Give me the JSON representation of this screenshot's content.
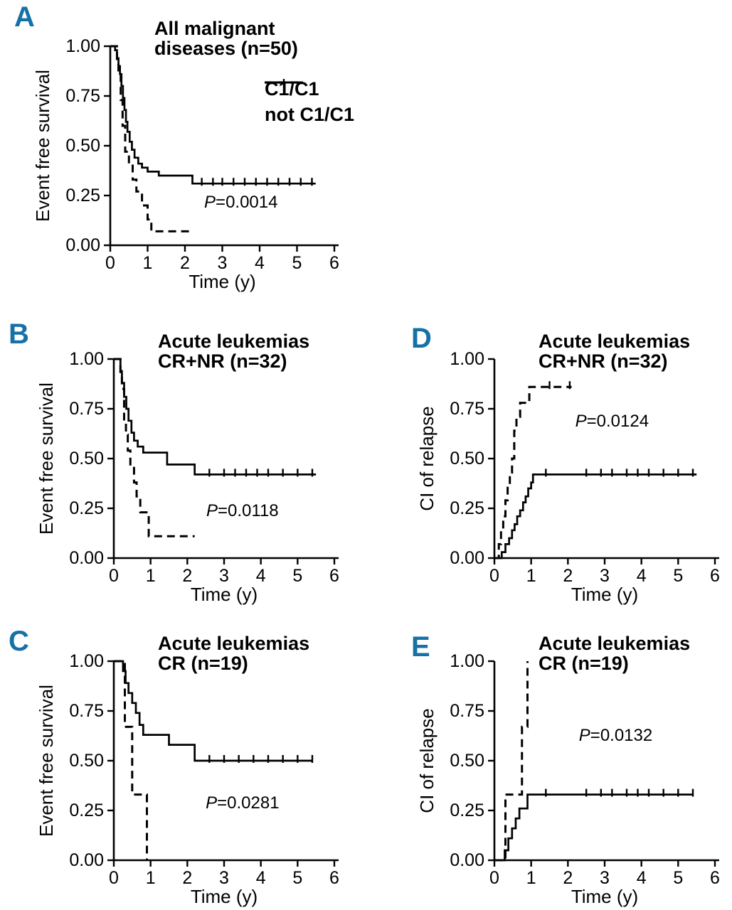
{
  "figure": {
    "background": "#ffffff",
    "panel_letter_color": "#1571a6",
    "curve_color": "#000000"
  },
  "legend": {
    "dashed_label": "C1/C1",
    "solid_label": "not C1/C1"
  },
  "chart_data": [
    {
      "panel_label": "A",
      "type": "line",
      "subtype": "kaplan-meier-step",
      "title_lines": [
        "All malignant",
        "diseases (n=50)"
      ],
      "xlabel": "Time (y)",
      "ylabel": "Event free survival",
      "xlim": [
        0,
        6
      ],
      "ylim": [
        0,
        1
      ],
      "xticks": [
        0,
        1,
        2,
        3,
        4,
        5,
        6
      ],
      "yticks": [
        "0.00",
        "0.25",
        "0.50",
        "0.75",
        "1.00"
      ],
      "p_label": "P=0.0014",
      "p_pos": [
        3.5,
        0.19
      ],
      "grid": false,
      "legend_position": "upper-right",
      "series": [
        {
          "name": "not C1/C1",
          "style": "solid",
          "points": [
            [
              0,
              1.0
            ],
            [
              0.13,
              0.98
            ],
            [
              0.18,
              0.94
            ],
            [
              0.22,
              0.9
            ],
            [
              0.26,
              0.86
            ],
            [
              0.3,
              0.8
            ],
            [
              0.34,
              0.74
            ],
            [
              0.38,
              0.68
            ],
            [
              0.42,
              0.62
            ],
            [
              0.46,
              0.57
            ],
            [
              0.52,
              0.52
            ],
            [
              0.58,
              0.48
            ],
            [
              0.65,
              0.44
            ],
            [
              0.75,
              0.41
            ],
            [
              0.85,
              0.39
            ],
            [
              1.0,
              0.37
            ],
            [
              1.3,
              0.35
            ],
            [
              2.2,
              0.31
            ],
            [
              5.5,
              0.31
            ]
          ],
          "censor_x": [
            2.45,
            2.75,
            3.0,
            3.3,
            3.6,
            3.9,
            4.2,
            4.5,
            4.8,
            5.1,
            5.4
          ]
        },
        {
          "name": "C1/C1",
          "style": "dashed",
          "points": [
            [
              0,
              1.0
            ],
            [
              0.18,
              0.93
            ],
            [
              0.22,
              0.87
            ],
            [
              0.28,
              0.73
            ],
            [
              0.33,
              0.6
            ],
            [
              0.4,
              0.47
            ],
            [
              0.5,
              0.4
            ],
            [
              0.6,
              0.33
            ],
            [
              0.7,
              0.27
            ],
            [
              0.85,
              0.2
            ],
            [
              1.0,
              0.13
            ],
            [
              1.1,
              0.07
            ],
            [
              2.2,
              0.07
            ]
          ],
          "censor_x": []
        }
      ]
    },
    {
      "panel_label": "B",
      "type": "line",
      "subtype": "kaplan-meier-step",
      "title_lines": [
        "Acute leukemias",
        "CR+NR (n=32)"
      ],
      "xlabel": "Time (y)",
      "ylabel": "Event free survival",
      "xlim": [
        0,
        6
      ],
      "ylim": [
        0,
        1
      ],
      "xticks": [
        0,
        1,
        2,
        3,
        4,
        5,
        6
      ],
      "yticks": [
        "0.00",
        "0.25",
        "0.50",
        "0.75",
        "1.00"
      ],
      "p_label": "P=0.0118",
      "p_pos": [
        3.5,
        0.21
      ],
      "grid": false,
      "series": [
        {
          "name": "not C1/C1",
          "style": "solid",
          "points": [
            [
              0,
              1.0
            ],
            [
              0.18,
              0.94
            ],
            [
              0.22,
              0.88
            ],
            [
              0.28,
              0.81
            ],
            [
              0.34,
              0.75
            ],
            [
              0.4,
              0.69
            ],
            [
              0.48,
              0.63
            ],
            [
              0.55,
              0.59
            ],
            [
              0.65,
              0.56
            ],
            [
              0.8,
              0.53
            ],
            [
              1.45,
              0.47
            ],
            [
              2.2,
              0.42
            ],
            [
              5.5,
              0.42
            ]
          ],
          "censor_x": [
            2.6,
            3.0,
            3.3,
            3.6,
            3.9,
            4.2,
            4.6,
            5.0,
            5.4
          ]
        },
        {
          "name": "C1/C1",
          "style": "dashed",
          "points": [
            [
              0,
              1.0
            ],
            [
              0.18,
              0.92
            ],
            [
              0.22,
              0.85
            ],
            [
              0.28,
              0.69
            ],
            [
              0.33,
              0.62
            ],
            [
              0.38,
              0.54
            ],
            [
              0.45,
              0.46
            ],
            [
              0.55,
              0.38
            ],
            [
              0.62,
              0.31
            ],
            [
              0.72,
              0.23
            ],
            [
              0.95,
              0.11
            ],
            [
              2.2,
              0.11
            ]
          ],
          "censor_x": []
        }
      ]
    },
    {
      "panel_label": "C",
      "type": "line",
      "subtype": "kaplan-meier-step",
      "title_lines": [
        "Acute leukemias",
        "CR (n=19)"
      ],
      "xlabel": "Time (y)",
      "ylabel": "Event free survival",
      "xlim": [
        0,
        6
      ],
      "ylim": [
        0,
        1
      ],
      "xticks": [
        0,
        1,
        2,
        3,
        4,
        5,
        6
      ],
      "yticks": [
        "0.00",
        "0.25",
        "0.50",
        "0.75",
        "1.00"
      ],
      "p_label": "P=0.0281",
      "p_pos": [
        3.5,
        0.26
      ],
      "grid": false,
      "series": [
        {
          "name": "not C1/C1",
          "style": "solid",
          "points": [
            [
              0,
              1.0
            ],
            [
              0.25,
              0.95
            ],
            [
              0.32,
              0.89
            ],
            [
              0.4,
              0.84
            ],
            [
              0.5,
              0.79
            ],
            [
              0.6,
              0.74
            ],
            [
              0.7,
              0.68
            ],
            [
              0.8,
              0.63
            ],
            [
              1.5,
              0.58
            ],
            [
              2.2,
              0.5
            ],
            [
              5.4,
              0.5
            ]
          ],
          "censor_x": [
            2.6,
            3.0,
            3.4,
            3.8,
            4.2,
            4.6,
            5.0,
            5.4
          ]
        },
        {
          "name": "C1/C1",
          "style": "dashed",
          "points": [
            [
              0,
              1.0
            ],
            [
              0.3,
              0.67
            ],
            [
              0.5,
              0.33
            ],
            [
              0.9,
              0.0
            ]
          ],
          "censor_x": []
        }
      ]
    },
    {
      "panel_label": "D",
      "type": "line",
      "subtype": "cumulative-incidence-step",
      "title_lines": [
        "Acute leukemias",
        "CR+NR (n=32)"
      ],
      "xlabel": "Time (y)",
      "ylabel": "CI of relapse",
      "xlim": [
        0,
        6
      ],
      "ylim": [
        0,
        1
      ],
      "xticks": [
        0,
        1,
        2,
        3,
        4,
        5,
        6
      ],
      "yticks": [
        "0.00",
        "0.25",
        "0.50",
        "0.75",
        "1.00"
      ],
      "p_label": "P=0.0124",
      "p_pos": [
        3.2,
        0.66
      ],
      "grid": false,
      "series": [
        {
          "name": "not C1/C1",
          "style": "solid",
          "points": [
            [
              0,
              0.0
            ],
            [
              0.2,
              0.03
            ],
            [
              0.3,
              0.07
            ],
            [
              0.4,
              0.1
            ],
            [
              0.48,
              0.14
            ],
            [
              0.55,
              0.17
            ],
            [
              0.62,
              0.21
            ],
            [
              0.7,
              0.24
            ],
            [
              0.78,
              0.28
            ],
            [
              0.85,
              0.31
            ],
            [
              0.92,
              0.35
            ],
            [
              1.0,
              0.38
            ],
            [
              1.05,
              0.42
            ],
            [
              5.5,
              0.42
            ]
          ],
          "censor_x": [
            1.4,
            2.5,
            2.9,
            3.2,
            3.6,
            3.9,
            4.2,
            4.6,
            5.0,
            5.4
          ]
        },
        {
          "name": "C1/C1",
          "style": "dashed",
          "points": [
            [
              0,
              0.0
            ],
            [
              0.12,
              0.07
            ],
            [
              0.18,
              0.14
            ],
            [
              0.24,
              0.21
            ],
            [
              0.3,
              0.29
            ],
            [
              0.36,
              0.36
            ],
            [
              0.42,
              0.43
            ],
            [
              0.48,
              0.5
            ],
            [
              0.54,
              0.64
            ],
            [
              0.6,
              0.71
            ],
            [
              0.7,
              0.78
            ],
            [
              0.95,
              0.86
            ],
            [
              2.1,
              0.86
            ]
          ],
          "censor_x": [
            1.5,
            2.05
          ]
        }
      ]
    },
    {
      "panel_label": "E",
      "type": "line",
      "subtype": "cumulative-incidence-step",
      "title_lines": [
        "Acute leukemias",
        "CR (n=19)"
      ],
      "xlabel": "Time (y)",
      "ylabel": "CI of relapse",
      "xlim": [
        0,
        6
      ],
      "ylim": [
        0,
        1
      ],
      "xticks": [
        0,
        1,
        2,
        3,
        4,
        5,
        6
      ],
      "yticks": [
        "0.00",
        "0.25",
        "0.50",
        "0.75",
        "1.00"
      ],
      "p_label": "P=0.0132",
      "p_pos": [
        3.3,
        0.6
      ],
      "grid": false,
      "series": [
        {
          "name": "not C1/C1",
          "style": "solid",
          "points": [
            [
              0,
              0.0
            ],
            [
              0.28,
              0.05
            ],
            [
              0.38,
              0.11
            ],
            [
              0.48,
              0.16
            ],
            [
              0.58,
              0.21
            ],
            [
              0.68,
              0.26
            ],
            [
              0.9,
              0.33
            ],
            [
              5.4,
              0.33
            ]
          ],
          "censor_x": [
            1.4,
            2.5,
            2.9,
            3.2,
            3.6,
            3.9,
            4.2,
            4.6,
            5.0,
            5.4
          ]
        },
        {
          "name": "C1/C1",
          "style": "dashed",
          "points": [
            [
              0,
              0.0
            ],
            [
              0.3,
              0.33
            ],
            [
              0.75,
              0.67
            ],
            [
              0.9,
              1.0
            ]
          ],
          "censor_x": []
        }
      ]
    }
  ]
}
